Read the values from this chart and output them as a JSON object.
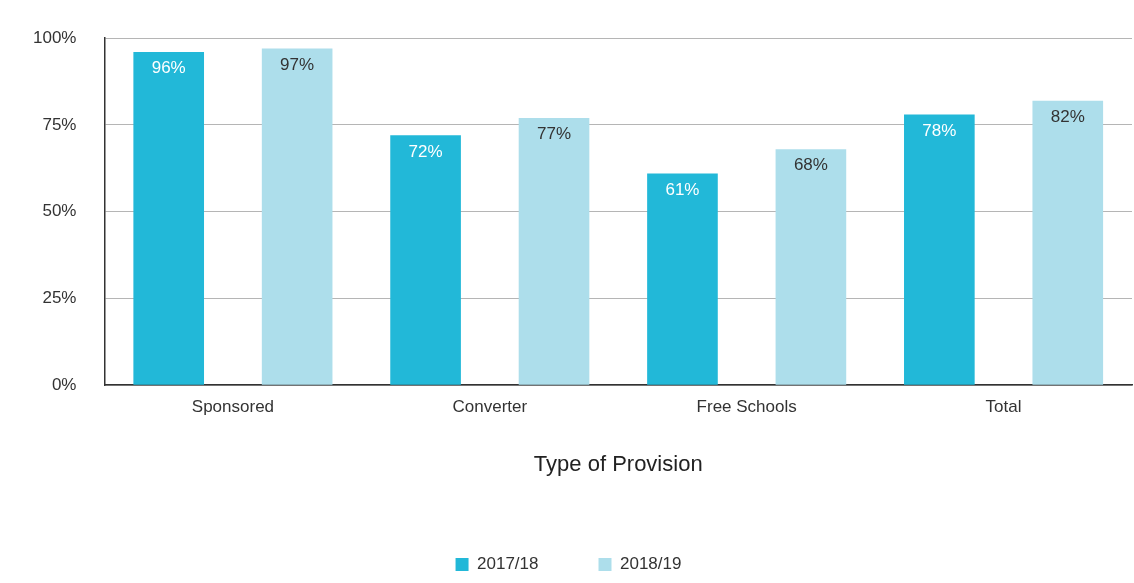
{
  "chart_data": {
    "type": "bar",
    "xlabel": "Type of Provision",
    "categories": [
      "Sponsored",
      "Converter",
      "Free Schools",
      "Total"
    ],
    "series": [
      {
        "name": "2017/18",
        "color": "#22b8d8",
        "values": [
          96,
          72,
          61,
          78
        ],
        "value_labels": [
          "96%",
          "72%",
          "61%",
          "78%"
        ]
      },
      {
        "name": "2018/19",
        "color": "#addeeb",
        "values": [
          97,
          77,
          68,
          82
        ],
        "value_labels": [
          "97%",
          "77%",
          "68%",
          "82%"
        ]
      }
    ],
    "ylim": [
      0,
      100
    ],
    "yticks": [
      {
        "value": 0,
        "label": "0%"
      },
      {
        "value": 25,
        "label": "25%"
      },
      {
        "value": 50,
        "label": "50%"
      },
      {
        "value": 75,
        "label": "75%"
      },
      {
        "value": 100,
        "label": "100%"
      }
    ],
    "grid": "y",
    "legend": "bottom"
  }
}
